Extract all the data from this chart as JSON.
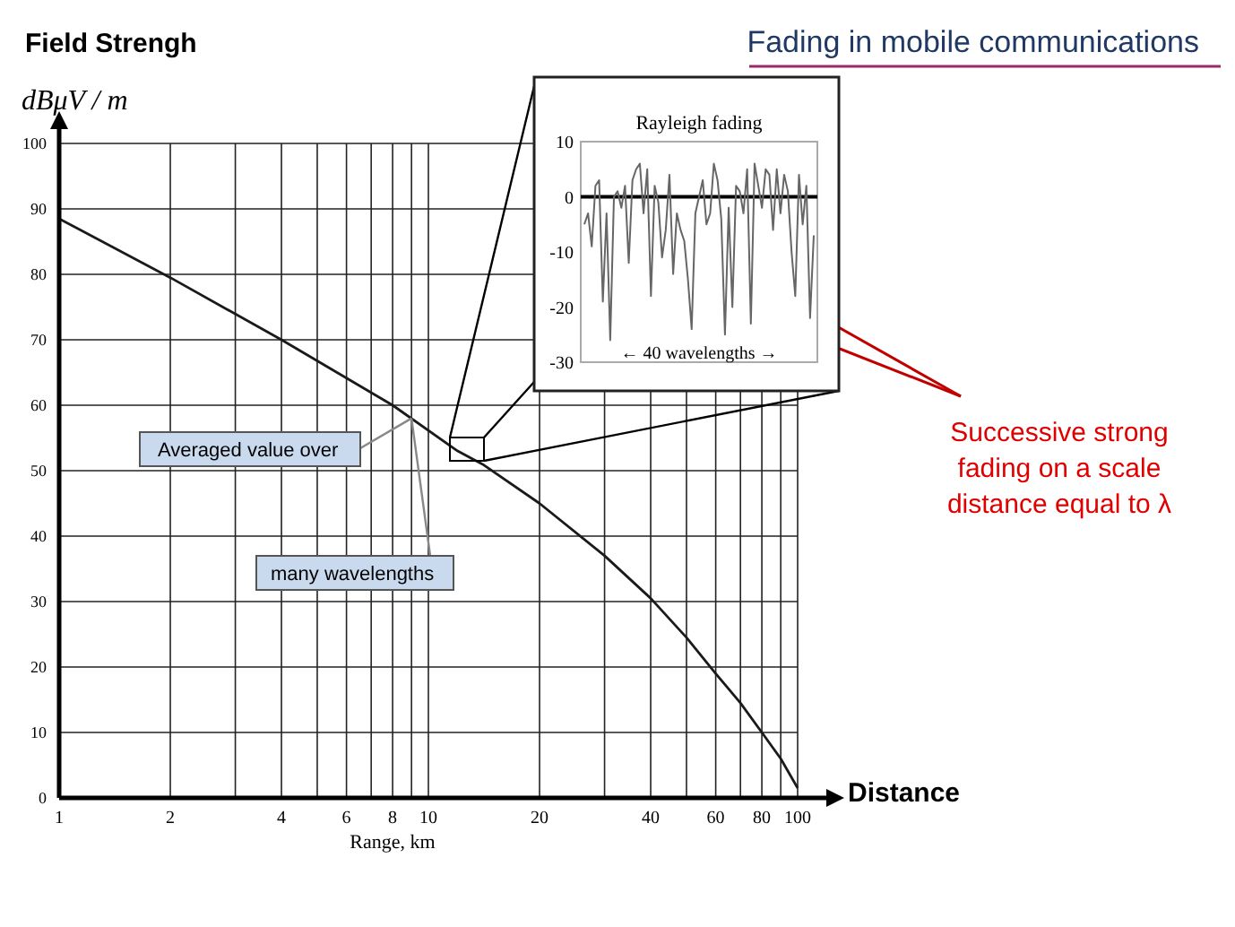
{
  "chart_data": [
    {
      "type": "line",
      "title": "Fading in mobile communications",
      "xlabel": "Range, km",
      "ylabel": "dBμV / m",
      "log": "x",
      "grid": true,
      "annotations": [
        "Field Strengh",
        "Distance",
        "Averaged value over",
        {
          "text": "many wavelengths",
          "x": 9,
          "y": 58
        },
        "Successive strong fading on a scale distance equal to λ"
      ],
      "series": [
        {
          "color": "#1a1a1a",
          "x": [
            1,
            2,
            4,
            8,
            12,
            14,
            20,
            30,
            40,
            50,
            60,
            70,
            80,
            90,
            100
          ],
          "values": [
            88.5,
            79.5,
            70,
            60,
            53,
            51,
            45,
            37,
            30.5,
            24.5,
            19,
            14.5,
            10,
            6,
            1.5
          ]
        }
      ],
      "xlim": [
        1,
        100
      ],
      "ylim": [
        0,
        100
      ],
      "xticks": [
        1,
        2,
        {
          "value": 3,
          "label": null
        },
        4,
        {
          "value": 5,
          "label": null
        },
        6,
        {
          "value": 7,
          "label": null
        },
        8,
        {
          "value": 9,
          "label": null
        },
        10,
        20,
        {
          "value": 30,
          "label": null
        },
        40,
        {
          "value": 50,
          "label": null
        },
        60,
        {
          "value": 70,
          "label": null
        },
        80,
        {
          "value": 90,
          "label": null
        },
        100
      ],
      "yticks": [
        0,
        10,
        20,
        30,
        40,
        50,
        60,
        70,
        80,
        90,
        100
      ]
    },
    {
      "type": "line",
      "title": "Rayleigh fading",
      "annotations": [
        "← 40 wavelengths →"
      ],
      "tick_labels": "y",
      "categories": [
        null,
        null,
        null,
        null,
        null,
        null,
        null,
        null,
        null,
        null,
        null,
        null,
        null,
        null,
        null,
        null,
        null,
        null,
        null,
        null,
        null,
        null,
        null,
        null,
        null,
        null,
        null,
        null,
        null,
        null,
        null,
        null,
        null,
        null,
        null,
        null,
        null,
        null,
        null,
        null,
        null,
        null,
        null,
        null,
        null,
        null,
        null,
        null,
        null,
        null,
        null,
        null,
        null,
        null,
        null,
        null,
        null,
        null,
        null,
        null,
        null,
        null,
        null
      ],
      "series": [
        {
          "color": "#666666",
          "values": [
            -5,
            -3,
            -9,
            2,
            3,
            -19,
            -3,
            -26,
            0,
            1,
            -2,
            2,
            -12,
            3,
            5,
            6,
            -3,
            5,
            -18,
            2,
            -1,
            -11,
            -6,
            4,
            -14,
            -3,
            -6,
            -8,
            -15,
            -24,
            -3,
            0,
            3,
            -5,
            -3,
            6,
            3,
            -4,
            -25,
            -2,
            -20,
            2,
            1,
            -3,
            5,
            -23,
            6,
            2,
            -2,
            5,
            4,
            -6,
            5,
            -3,
            4,
            1,
            -10,
            -18,
            4,
            -5,
            2,
            -22,
            -7
          ]
        }
      ],
      "ylim": [
        -30,
        10
      ],
      "yticks": [
        -30,
        -20,
        -10,
        0,
        10
      ],
      "ref_lines": [
        {
          "axis": "y",
          "value": 0,
          "color": "#000000"
        }
      ]
    }
  ]
}
